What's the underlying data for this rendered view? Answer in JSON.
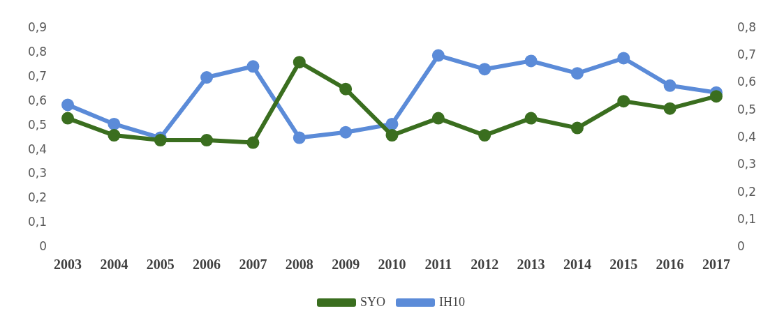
{
  "chart_data": {
    "type": "line",
    "categories": [
      "2003",
      "2004",
      "2005",
      "2006",
      "2007",
      "2008",
      "2009",
      "2010",
      "2011",
      "2012",
      "2013",
      "2014",
      "2015",
      "2016",
      "2017"
    ],
    "series": [
      {
        "name": "SYO",
        "color": "#3a6e1f",
        "values": [
          0.53,
          0.46,
          0.44,
          0.44,
          0.43,
          0.76,
          0.65,
          0.46,
          0.53,
          0.46,
          0.53,
          0.49,
          0.6,
          0.57,
          0.62
        ]
      },
      {
        "name": "IH10",
        "color": "#5b8bd8",
        "axis": "y2",
        "values": [
          0.52,
          0.45,
          0.4,
          0.62,
          0.66,
          0.4,
          0.42,
          0.45,
          0.7,
          0.65,
          0.68,
          0.635,
          0.69,
          0.59,
          0.565
        ]
      }
    ],
    "ylim": [
      0,
      0.9
    ],
    "yticks": [
      0,
      {
        "value": 0.1,
        "label": "0,1"
      },
      {
        "value": 0.2,
        "label": "0,2"
      },
      {
        "value": 0.3,
        "label": "0,3"
      },
      {
        "value": 0.4,
        "label": "0,4"
      },
      {
        "value": 0.5,
        "label": "0,5"
      },
      {
        "value": 0.6,
        "label": "0,6"
      },
      {
        "value": 0.7,
        "label": "0,7"
      },
      {
        "value": 0.8,
        "label": "0,8"
      },
      {
        "value": 0.9,
        "label": "0,9"
      }
    ],
    "y2lim": [
      0,
      0.8
    ],
    "y2ticks": [
      0,
      {
        "value": 0.1,
        "label": "0,1"
      },
      {
        "value": 0.2,
        "label": "0,2"
      },
      {
        "value": 0.3,
        "label": "0,3"
      },
      {
        "value": 0.4,
        "label": "0,4"
      },
      {
        "value": 0.5,
        "label": "0,5"
      },
      {
        "value": 0.6,
        "label": "0,6"
      },
      {
        "value": 0.7,
        "label": "0,7"
      },
      {
        "value": 0.8,
        "label": "0,8"
      }
    ],
    "grid": false,
    "legend": "bottom",
    "marker": "circle",
    "line_style": "solid"
  }
}
